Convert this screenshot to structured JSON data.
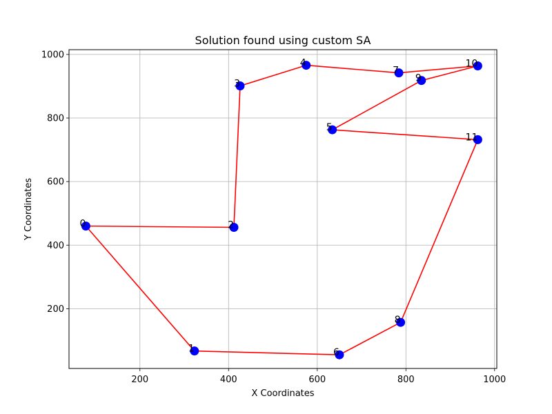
{
  "chart_data": {
    "type": "line",
    "title": "Solution found using custom SA",
    "xlabel": "X Coordinates",
    "ylabel": "Y Coordinates",
    "xlim": [
      40,
      1005
    ],
    "ylim": [
      12,
      1015
    ],
    "xticks": [
      200,
      400,
      600,
      800,
      1000
    ],
    "yticks": [
      200,
      400,
      600,
      800,
      1000
    ],
    "grid": true,
    "colors": {
      "path": "#ff0000",
      "points": "#0000ff"
    },
    "points": [
      {
        "label": "0",
        "x": 78,
        "y": 460
      },
      {
        "label": "1",
        "x": 323,
        "y": 67
      },
      {
        "label": "2",
        "x": 412,
        "y": 456
      },
      {
        "label": "3",
        "x": 426,
        "y": 901
      },
      {
        "label": "4",
        "x": 575,
        "y": 966
      },
      {
        "label": "5",
        "x": 634,
        "y": 763
      },
      {
        "label": "6",
        "x": 650,
        "y": 55
      },
      {
        "label": "7",
        "x": 784,
        "y": 942
      },
      {
        "label": "8",
        "x": 788,
        "y": 157
      },
      {
        "label": "9",
        "x": 835,
        "y": 918
      },
      {
        "label": "10",
        "x": 962,
        "y": 964
      },
      {
        "label": "11",
        "x": 962,
        "y": 732
      }
    ],
    "route": [
      0,
      1,
      6,
      8,
      11,
      5,
      9,
      10,
      7,
      4,
      3,
      2,
      0
    ]
  }
}
